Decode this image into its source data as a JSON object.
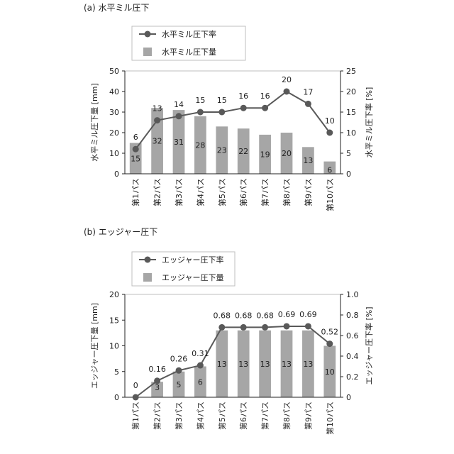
{
  "figure": {
    "colors": {
      "bar": "#a6a6a6",
      "line": "#595959",
      "axis": "#222222",
      "text": "#222222",
      "background": "#ffffff"
    },
    "icons": {
      "line_marker": "filled-circle",
      "bar_marker": "gray-square"
    }
  },
  "chart_data": [
    {
      "panel_label": "(a) 水平ミル圧下",
      "type": "bar",
      "categories": [
        "第1パス",
        "第2パス",
        "第3パス",
        "第4パス",
        "第5パス",
        "第6パス",
        "第7パス",
        "第8パス",
        "第9パス",
        "第10パス"
      ],
      "series": [
        {
          "name": "水平ミル圧下量",
          "type": "bar",
          "axis": "left",
          "values": [
            15,
            32,
            31,
            28,
            23,
            22,
            19,
            20,
            13,
            6
          ]
        },
        {
          "name": "水平ミル圧下率",
          "type": "line",
          "axis": "right",
          "values": [
            6,
            13,
            14,
            15,
            15,
            16,
            16,
            20,
            17,
            10
          ]
        }
      ],
      "ylabel": "水平ミル圧下量 [mm]",
      "y2label": "水平ミル圧下率 [%]",
      "ylim": [
        0,
        50
      ],
      "yticks": [
        0,
        10,
        20,
        30,
        40,
        50
      ],
      "y2lim": [
        0,
        25
      ],
      "y2ticks": [
        0,
        5,
        10,
        15,
        20,
        25
      ],
      "grid": false,
      "legend_position": "top-left"
    },
    {
      "panel_label": "(b) エッジャー圧下",
      "type": "bar",
      "categories": [
        "第1パス",
        "第2パス",
        "第3パス",
        "第4パス",
        "第5パス",
        "第6パス",
        "第7パス",
        "第8パス",
        "第9パス",
        "第10パス"
      ],
      "series": [
        {
          "name": "エッジャー圧下量",
          "type": "bar",
          "axis": "left",
          "values": [
            0,
            3,
            5,
            6,
            13,
            13,
            13,
            13,
            13,
            10
          ]
        },
        {
          "name": "エッジャー圧下率",
          "type": "line",
          "axis": "right",
          "values": [
            0,
            0.16,
            0.26,
            0.31,
            0.68,
            0.68,
            0.68,
            0.69,
            0.69,
            0.52
          ]
        }
      ],
      "ylabel": "エッジャー圧下量 [mm]",
      "y2label": "エッジャー圧下率 [%]",
      "ylim": [
        0,
        20
      ],
      "yticks": [
        0,
        5,
        10,
        15,
        20
      ],
      "y2lim": [
        0,
        1.0
      ],
      "y2ticks": [
        "0",
        "0.2",
        "0.4",
        "0.6",
        "0.8",
        "1.0"
      ],
      "grid": false,
      "legend_position": "top-left"
    }
  ]
}
